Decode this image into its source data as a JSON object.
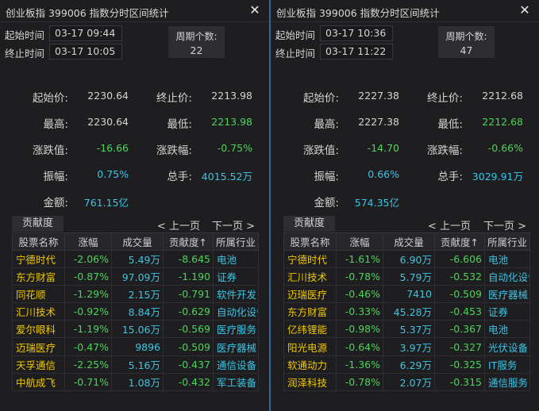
{
  "panels": [
    {
      "title": "创业板指   399006   指数分时区间统计",
      "close_icon": "✕",
      "start_label": "起始时间",
      "start_time": "03-17 09:44",
      "end_label": "终止时间",
      "end_time": "03-17 10:05",
      "period_label": "周期个数:",
      "period_count": "22",
      "stats": {
        "start_price_label": "起始价:",
        "start_price": "2230.64",
        "end_price_label": "终止价:",
        "end_price": "2213.98",
        "high_label": "最高:",
        "high": "2230.64",
        "low_label": "最低:",
        "low": "2213.98",
        "change_label": "涨跌值:",
        "change": "-16.66",
        "change_pct_label": "涨跌幅:",
        "change_pct": "-0.75%",
        "amplitude_label": "振幅:",
        "amplitude": "0.75%",
        "volume_label": "总手:",
        "volume": "4015.52万",
        "amount_label": "金额:",
        "amount": "761.15亿"
      },
      "contribution_label": "贡献度",
      "prev_page": "< 上一页",
      "next_page": "下一页 >",
      "columns": [
        "股票名称",
        "涨幅",
        "成交量",
        "贡献度↑",
        "所属行业"
      ],
      "rows": [
        {
          "name": "宁德时代",
          "pct": "-2.06%",
          "vol": "5.49万",
          "contrib": "-8.645",
          "industry": "电池"
        },
        {
          "name": "东方财富",
          "pct": "-0.87%",
          "vol": "97.09万",
          "contrib": "-1.190",
          "industry": "证券"
        },
        {
          "name": "同花顺",
          "pct": "-1.29%",
          "vol": "2.15万",
          "contrib": "-0.791",
          "industry": "软件开发"
        },
        {
          "name": "汇川技术",
          "pct": "-0.92%",
          "vol": "8.84万",
          "contrib": "-0.629",
          "industry": "自动化设备"
        },
        {
          "name": "爱尔眼科",
          "pct": "-1.19%",
          "vol": "15.06万",
          "contrib": "-0.569",
          "industry": "医疗服务"
        },
        {
          "name": "迈瑞医疗",
          "pct": "-0.47%",
          "vol": "9896",
          "contrib": "-0.509",
          "industry": "医疗器械"
        },
        {
          "name": "天孚通信",
          "pct": "-2.25%",
          "vol": "5.16万",
          "contrib": "-0.437",
          "industry": "通信设备"
        },
        {
          "name": "中航成飞",
          "pct": "-0.71%",
          "vol": "1.08万",
          "contrib": "-0.432",
          "industry": "军工装备"
        }
      ]
    },
    {
      "title": "创业板指   399006   指数分时区间统计",
      "close_icon": "✕",
      "start_label": "起始时间",
      "start_time": "03-17 10:36",
      "end_label": "终止时间",
      "end_time": "03-17 11:22",
      "period_label": "周期个数:",
      "period_count": "47",
      "stats": {
        "start_price_label": "起始价:",
        "start_price": "2227.38",
        "end_price_label": "终止价:",
        "end_price": "2212.68",
        "high_label": "最高:",
        "high": "2227.38",
        "low_label": "最低:",
        "low": "2212.68",
        "change_label": "涨跌值:",
        "change": "-14.70",
        "change_pct_label": "涨跌幅:",
        "change_pct": "-0.66%",
        "amplitude_label": "振幅:",
        "amplitude": "0.66%",
        "volume_label": "总手:",
        "volume": "3029.91万",
        "amount_label": "金额:",
        "amount": "574.35亿"
      },
      "contribution_label": "贡献度",
      "prev_page": "< 上一页",
      "next_page": "下一页 >",
      "columns": [
        "股票名称",
        "涨幅",
        "成交量",
        "贡献度↑",
        "所属行业"
      ],
      "rows": [
        {
          "name": "宁德时代",
          "pct": "-1.61%",
          "vol": "6.90万",
          "contrib": "-6.606",
          "industry": "电池"
        },
        {
          "name": "汇川技术",
          "pct": "-0.78%",
          "vol": "5.79万",
          "contrib": "-0.532",
          "industry": "自动化设备"
        },
        {
          "name": "迈瑞医疗",
          "pct": "-0.46%",
          "vol": "7410",
          "contrib": "-0.509",
          "industry": "医疗器械"
        },
        {
          "name": "东方财富",
          "pct": "-0.33%",
          "vol": "45.28万",
          "contrib": "-0.453",
          "industry": "证券"
        },
        {
          "name": "亿纬锂能",
          "pct": "-0.98%",
          "vol": "5.37万",
          "contrib": "-0.367",
          "industry": "电池"
        },
        {
          "name": "阳光电源",
          "pct": "-0.64%",
          "vol": "3.97万",
          "contrib": "-0.327",
          "industry": "光伏设备"
        },
        {
          "name": "软通动力",
          "pct": "-1.36%",
          "vol": "6.29万",
          "contrib": "-0.325",
          "industry": "IT服务"
        },
        {
          "name": "润泽科技",
          "pct": "-0.78%",
          "vol": "2.07万",
          "contrib": "-0.315",
          "industry": "通信服务"
        }
      ]
    }
  ]
}
